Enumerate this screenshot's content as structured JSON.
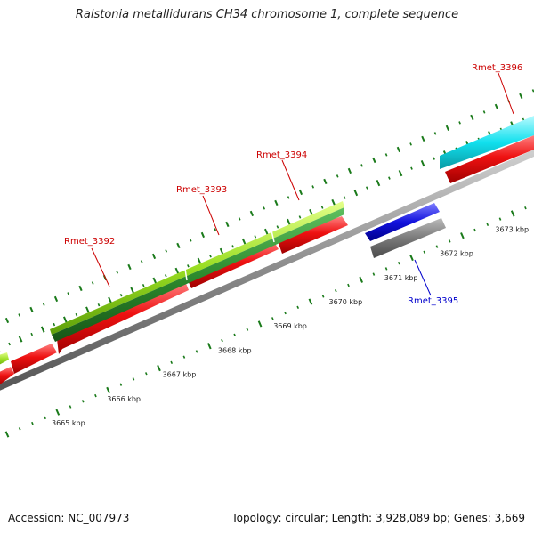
{
  "title": "Ralstonia metallidurans CH34 chromosome 1, complete sequence",
  "accession": "Accession: NC_007973",
  "summary": "Topology: circular; Length: 3,928,089 bp; Genes: 3,669",
  "colors": {
    "backbone": "#8c8c8c",
    "tick": "#1a7a1a",
    "label_red": "#cc0000",
    "label_blue": "#0000cc",
    "cds_red": "#ee1111",
    "cds_yellowgreen": "#99dd22",
    "cds_darkgreen": "#2e8b2e",
    "cds_cyan": "#11e0ee",
    "cds_blue": "#1111dd",
    "cds_gray": "#7a7a7a"
  },
  "scale_labels": [
    "3665 kbp",
    "3666 kbp",
    "3667 kbp",
    "3668 kbp",
    "3669 kbp",
    "3670 kbp",
    "3671 kbp",
    "3672 kbp",
    "3673 kbp"
  ],
  "genes": [
    {
      "label": "Rmet_3392",
      "color": "label_red"
    },
    {
      "label": "Rmet_3393",
      "color": "label_red"
    },
    {
      "label": "Rmet_3394",
      "color": "label_red"
    },
    {
      "label": "Rmet_3395",
      "color": "label_blue"
    },
    {
      "label": "Rmet_3396",
      "color": "label_red"
    }
  ]
}
